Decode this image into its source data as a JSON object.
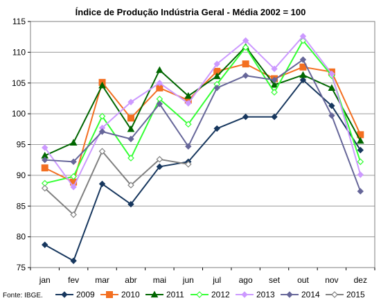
{
  "chart_data": {
    "type": "line",
    "title": "Índice de Produção Indústria Geral - Média 2002 = 100",
    "xlabel": "",
    "ylabel": "",
    "categories": [
      "jan",
      "fev",
      "mar",
      "abr",
      "mai",
      "jun",
      "jul",
      "ago",
      "set",
      "out",
      "nov",
      "dez"
    ],
    "ylim": [
      75,
      115
    ],
    "yticks": [
      75,
      80,
      85,
      90,
      95,
      100,
      105,
      110,
      115
    ],
    "grid": "horizontal",
    "legend_position": "bottom",
    "series": [
      {
        "name": "2009",
        "color": "#17375e",
        "marker": "diamond-filled",
        "values": [
          78.7,
          76.1,
          88.6,
          85.3,
          91.4,
          92.2,
          97.6,
          99.5,
          99.5,
          105.5,
          101.3,
          94.1
        ]
      },
      {
        "name": "2010",
        "color": "#f36f21",
        "marker": "square-filled",
        "values": [
          91.2,
          88.9,
          105.1,
          99.3,
          104.2,
          102.2,
          106.9,
          108.1,
          105.7,
          107.6,
          106.8,
          96.6
        ]
      },
      {
        "name": "2011",
        "color": "#006600",
        "marker": "triangle-filled",
        "values": [
          93.2,
          95.3,
          104.6,
          97.5,
          107.1,
          102.9,
          106.1,
          110.9,
          104.7,
          106.3,
          104.2,
          95.6
        ]
      },
      {
        "name": "2012",
        "color": "#33ff33",
        "marker": "diamond-open",
        "values": [
          88.7,
          89.8,
          99.6,
          92.8,
          102.4,
          98.3,
          104.8,
          110.8,
          103.5,
          111.9,
          106.2,
          92.2
        ]
      },
      {
        "name": "2013",
        "color": "#cc99ff",
        "marker": "diamond-filled",
        "values": [
          94.5,
          88.1,
          97.7,
          101.9,
          105.0,
          101.7,
          108.1,
          111.9,
          107.3,
          112.6,
          106.5,
          90.1
        ]
      },
      {
        "name": "2014",
        "color": "#666699",
        "marker": "diamond-filled",
        "values": [
          92.5,
          92.2,
          97.1,
          95.9,
          101.6,
          94.7,
          104.2,
          106.2,
          105.5,
          108.8,
          99.7,
          87.4
        ]
      },
      {
        "name": "2015",
        "color": "#808080",
        "marker": "diamond-open",
        "values": [
          87.9,
          83.6,
          93.9,
          88.4,
          92.6,
          91.8,
          null,
          null,
          null,
          null,
          null,
          null
        ]
      }
    ]
  },
  "source": "Fonte: IBGE."
}
